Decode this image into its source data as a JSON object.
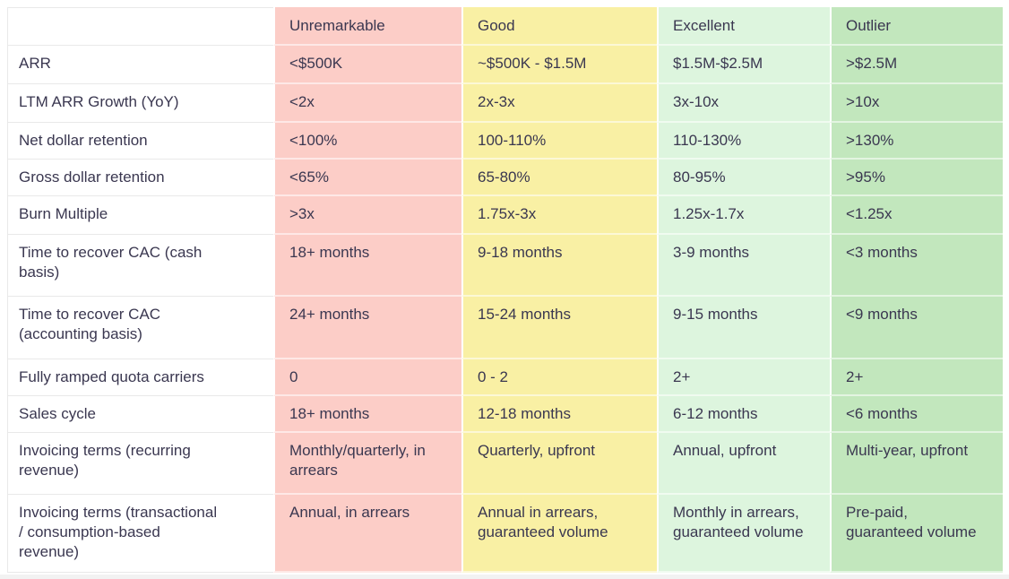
{
  "table": {
    "corner_label": "",
    "column_keys": [
      "unremarkable",
      "good",
      "excellent",
      "outlier"
    ],
    "columns": [
      "Unremarkable",
      "Good",
      "Excellent",
      "Outlier"
    ],
    "rows": [
      {
        "metric": "ARR",
        "values": [
          "<$500K",
          "~$500K - $1.5M",
          "$1.5M-$2.5M",
          ">$2.5M"
        ]
      },
      {
        "metric": "LTM ARR Growth (YoY)",
        "values": [
          "<2x",
          "2x-3x",
          "3x-10x",
          ">10x"
        ]
      },
      {
        "metric": "Net dollar retention",
        "values": [
          "<100%",
          "100-110%",
          "110-130%",
          ">130%"
        ]
      },
      {
        "metric": "Gross dollar retention",
        "values": [
          "<65%",
          "65-80%",
          "80-95%",
          ">95%"
        ]
      },
      {
        "metric": "Burn Multiple",
        "values": [
          ">3x",
          "1.75x-3x",
          "1.25x-1.7x",
          "<1.25x"
        ]
      },
      {
        "metric": "Time to recover CAC (cash basis)",
        "values": [
          "18+ months",
          "9-18 months",
          "3-9 months",
          "<3 months"
        ]
      },
      {
        "metric": "Time to recover CAC (accounting basis)",
        "values": [
          "24+ months",
          "15-24 months",
          "9-15 months",
          "<9 months"
        ]
      },
      {
        "metric": "Fully ramped quota carriers",
        "values": [
          "0",
          "0 - 2",
          "2+",
          "2+"
        ]
      },
      {
        "metric": "Sales cycle",
        "values": [
          "18+ months",
          "12-18 months",
          "6-12 months",
          "<6 months"
        ]
      },
      {
        "metric": "Invoicing terms (recurring revenue)",
        "values": [
          "Monthly/quarterly, in arrears",
          "Quarterly, upfront",
          "Annual, upfront",
          "Multi-year, upfront"
        ]
      },
      {
        "metric": "Invoicing terms (transactional / consumption-based revenue)",
        "values": [
          "Annual, in arrears",
          "Annual in arrears, guaranteed volume",
          "Monthly in arrears, guaranteed volume",
          "Pre-paid, guaranteed volume"
        ]
      }
    ]
  },
  "colors": {
    "unremarkable_bg": "#fccdc7",
    "good_bg": "#f9f0a4",
    "excellent_bg": "#ddf5de",
    "outlier_bg": "#c2e7bd",
    "metric_bg": "#ffffff",
    "grid_line": "#e9e9e9",
    "text": "#3a3750"
  }
}
